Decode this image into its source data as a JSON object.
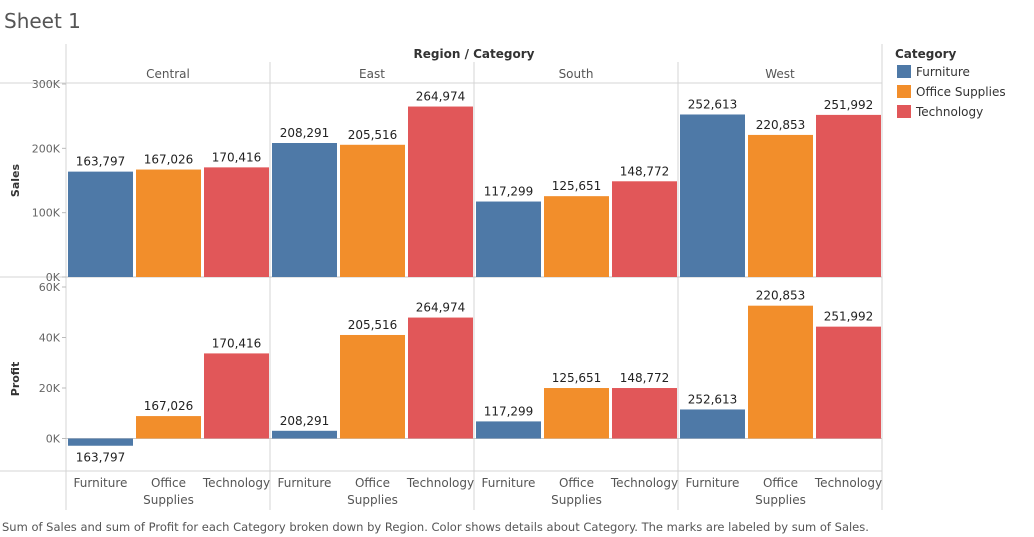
{
  "title": "Sheet 1",
  "caption": "Sum of Sales and sum of Profit for each Category broken down by Region.  Color shows details about Category.  The marks are labeled by sum of Sales.",
  "legend": {
    "title": "Category",
    "items": [
      {
        "label": "Furniture",
        "color": "#4e79a7"
      },
      {
        "label": "Office Supplies",
        "color": "#f28e2b"
      },
      {
        "label": "Technology",
        "color": "#e15759"
      }
    ]
  },
  "chart_data": {
    "type": "bar",
    "column_header": "Region / Category",
    "regions": [
      "Central",
      "East",
      "South",
      "West"
    ],
    "categories": [
      "Furniture",
      "Office Supplies",
      "Technology"
    ],
    "category_labels": [
      [
        "Furniture"
      ],
      [
        "Office",
        "Supplies"
      ],
      [
        "Technology"
      ]
    ],
    "legend_position": "right",
    "panes": [
      {
        "ylabel": "Sales",
        "ylim": [
          0,
          300000
        ],
        "ticks": [
          0,
          100000,
          200000,
          300000
        ],
        "tick_labels": [
          "0K",
          "100K",
          "200K",
          "300K"
        ],
        "values": [
          [
            163797,
            167026,
            170416
          ],
          [
            208291,
            205516,
            264974
          ],
          [
            117299,
            125651,
            148772
          ],
          [
            252613,
            220853,
            251992
          ]
        ]
      },
      {
        "ylabel": "Profit",
        "ylim": [
          -4000,
          60000
        ],
        "ticks": [
          0,
          20000,
          40000,
          60000
        ],
        "tick_labels": [
          "0K",
          "20K",
          "40K",
          "60K"
        ],
        "values": [
          [
            -2870,
            8880,
            33700
          ],
          [
            3050,
            41000,
            47900
          ],
          [
            6770,
            19990,
            19990
          ],
          [
            11500,
            52600,
            44300
          ]
        ]
      }
    ],
    "data_labels": [
      [
        "163,797",
        "167,026",
        "170,416"
      ],
      [
        "208,291",
        "205,516",
        "264,974"
      ],
      [
        "117,299",
        "125,651",
        "148,772"
      ],
      [
        "252,613",
        "220,853",
        "251,992"
      ]
    ]
  }
}
